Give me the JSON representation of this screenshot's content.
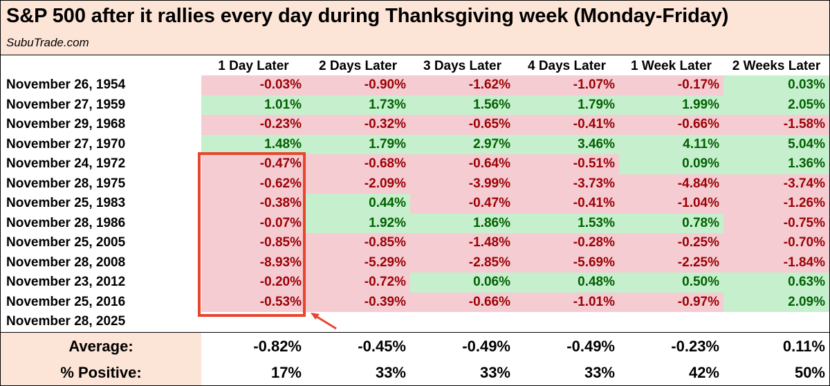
{
  "header": {
    "title": "S&P 500 after it rallies every day during Thanksgiving week (Monday-Friday)",
    "subtitle": "SubuTrade.com"
  },
  "colors": {
    "negative_bg": "#f4ccd1",
    "negative_text": "#9c0006",
    "positive_bg": "#c6efce",
    "positive_text": "#006100",
    "header_bg": "#fce4d6",
    "highlight": "#e8452c"
  },
  "chart_data": {
    "type": "table",
    "title": "S&P 500 after it rallies every day during Thanksgiving week (Monday-Friday)",
    "columns": [
      "1 Day Later",
      "2 Days Later",
      "3 Days Later",
      "4 Days Later",
      "1 Week Later",
      "2 Weeks Later"
    ],
    "rows": [
      {
        "date": "November 26, 1954",
        "values": [
          "-0.03%",
          "-0.90%",
          "-1.62%",
          "-1.07%",
          "-0.17%",
          "0.03%"
        ]
      },
      {
        "date": "November 27, 1959",
        "values": [
          "1.01%",
          "1.73%",
          "1.56%",
          "1.79%",
          "1.99%",
          "2.05%"
        ]
      },
      {
        "date": "November 29, 1968",
        "values": [
          "-0.23%",
          "-0.32%",
          "-0.65%",
          "-0.41%",
          "-0.66%",
          "-1.58%"
        ]
      },
      {
        "date": "November 27, 1970",
        "values": [
          "1.48%",
          "1.79%",
          "2.97%",
          "3.46%",
          "4.11%",
          "5.04%"
        ]
      },
      {
        "date": "November 24, 1972",
        "values": [
          "-0.47%",
          "-0.68%",
          "-0.64%",
          "-0.51%",
          "0.09%",
          "1.36%"
        ]
      },
      {
        "date": "November 28, 1975",
        "values": [
          "-0.62%",
          "-2.09%",
          "-3.99%",
          "-3.73%",
          "-4.84%",
          "-3.74%"
        ]
      },
      {
        "date": "November 25, 1983",
        "values": [
          "-0.38%",
          "0.44%",
          "-0.47%",
          "-0.41%",
          "-1.04%",
          "-1.26%"
        ]
      },
      {
        "date": "November 28, 1986",
        "values": [
          "-0.07%",
          "1.92%",
          "1.86%",
          "1.53%",
          "0.78%",
          "-0.75%"
        ]
      },
      {
        "date": "November 25, 2005",
        "values": [
          "-0.85%",
          "-0.85%",
          "-1.48%",
          "-0.28%",
          "-0.25%",
          "-0.70%"
        ]
      },
      {
        "date": "November 28, 2008",
        "values": [
          "-8.93%",
          "-5.29%",
          "-2.85%",
          "-5.69%",
          "-2.25%",
          "-1.84%"
        ]
      },
      {
        "date": "November 23, 2012",
        "values": [
          "-0.20%",
          "-0.72%",
          "0.06%",
          "0.48%",
          "0.50%",
          "0.63%"
        ]
      },
      {
        "date": "November 25, 2016",
        "values": [
          "-0.53%",
          "-0.39%",
          "-0.66%",
          "-1.01%",
          "-0.97%",
          "2.09%"
        ]
      },
      {
        "date": "November 28, 2025",
        "values": [
          "",
          "",
          "",
          "",
          "",
          ""
        ]
      }
    ],
    "summary": [
      {
        "label": "Average:",
        "values": [
          "-0.82%",
          "-0.45%",
          "-0.49%",
          "-0.49%",
          "-0.23%",
          "0.11%"
        ]
      },
      {
        "label": "% Positive:",
        "values": [
          "17%",
          "33%",
          "33%",
          "33%",
          "42%",
          "50%"
        ]
      }
    ],
    "annotation": "red box highlighting 1 Day Later for 1972–2016 with arrow"
  }
}
